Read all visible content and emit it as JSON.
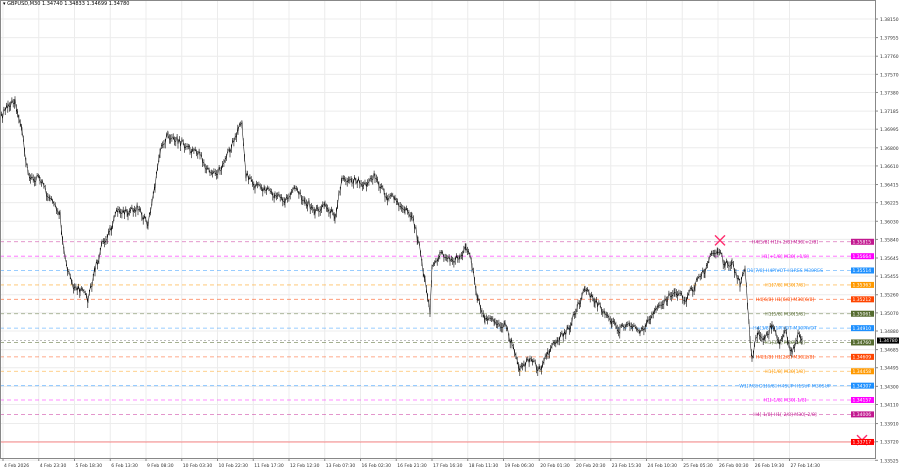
{
  "header": {
    "symbol_icon": "triangle-down-icon",
    "title": "GBPUSD,M30  1.34740 1.34833 1.34699 1.34780"
  },
  "chart_data": {
    "type": "line",
    "title": "GBPUSD,M30",
    "ylim": [
      1.33549,
      1.38349
    ],
    "xlim": [
      0,
      875
    ],
    "grid": true,
    "y_ticks": [
      "1.38150",
      "1.37955",
      "1.37760",
      "1.37570",
      "1.37380",
      "1.37185",
      "1.36995",
      "1.36800",
      "1.36610",
      "1.36415",
      "1.36225",
      "1.36030",
      "1.35840",
      "1.35645",
      "1.35455",
      "1.35260",
      "1.35070",
      "1.34880",
      "1.34685",
      "1.34495",
      "1.34300",
      "1.34110",
      "1.33910",
      "1.33720",
      "1.33525"
    ],
    "x_ticks": [
      "4 Feb 2026",
      "4 Feb 23:30",
      "5 Feb 18:30",
      "6 Feb 13:30",
      "9 Feb 08:30",
      "10 Feb 03:30",
      "10 Feb 22:30",
      "11 Feb 17:30",
      "12 Feb 12:30",
      "13 Feb 07:30",
      "16 Feb 02:30",
      "16 Feb 21:30",
      "17 Feb 16:30",
      "18 Feb 11:30",
      "19 Feb 06:30",
      "20 Feb 01:30",
      "20 Feb 20:30",
      "23 Feb 15:30",
      "24 Feb 10:30",
      "25 Feb 05:30",
      "26 Feb 00:30",
      "26 Feb 19:30",
      "27 Feb 14:30"
    ],
    "bars": [
      0,
      8,
      15,
      22,
      28,
      40,
      50,
      60,
      65,
      72,
      80,
      88,
      95,
      102,
      110,
      118,
      128,
      138,
      148,
      155,
      160,
      168,
      178,
      190,
      200,
      210,
      220,
      230,
      238,
      242,
      246,
      255,
      265,
      275,
      285,
      295,
      305,
      315,
      325,
      335,
      342,
      352,
      365,
      375,
      385,
      395,
      405,
      412,
      418,
      425,
      430,
      432,
      440,
      450,
      460,
      466,
      472,
      478,
      485,
      495,
      505,
      512,
      520,
      530,
      540,
      548,
      558,
      568,
      578,
      585,
      595,
      605,
      612,
      620,
      630,
      640,
      648,
      656,
      665,
      675,
      685,
      695,
      705,
      712,
      718,
      725,
      732,
      740,
      745,
      750,
      752,
      758,
      765,
      772,
      780,
      785,
      792,
      798,
      802
    ],
    "closes": [
      1.37091,
      1.37249,
      1.37301,
      1.36987,
      1.36515,
      1.36463,
      1.36253,
      1.36096,
      1.35624,
      1.35362,
      1.3531,
      1.35205,
      1.35519,
      1.35781,
      1.35939,
      1.36148,
      1.36127,
      1.36169,
      1.35991,
      1.36411,
      1.36777,
      1.36934,
      1.36882,
      1.36777,
      1.36725,
      1.36515,
      1.36567,
      1.36777,
      1.36987,
      1.37039,
      1.36515,
      1.36411,
      1.36358,
      1.36306,
      1.36253,
      1.36358,
      1.36253,
      1.36148,
      1.36201,
      1.36096,
      1.36463,
      1.36463,
      1.36411,
      1.36515,
      1.36306,
      1.36253,
      1.36148,
      1.36096,
      1.35834,
      1.35415,
      1.351,
      1.35519,
      1.35677,
      1.35624,
      1.35645,
      1.35781,
      1.35572,
      1.35205,
      1.35016,
      1.34974,
      1.34943,
      1.34733,
      1.34492,
      1.34576,
      1.34472,
      1.3466,
      1.34786,
      1.34891,
      1.35153,
      1.3531,
      1.35205,
      1.35047,
      1.34995,
      1.34891,
      1.34943,
      1.34838,
      1.34995,
      1.351,
      1.35205,
      1.3531,
      1.35205,
      1.35362,
      1.35519,
      1.35677,
      1.35729,
      1.35572,
      1.35603,
      1.35362,
      1.35519,
      1.34786,
      1.34576,
      1.34891,
      1.34786,
      1.34943,
      1.34733,
      1.34891,
      1.34629,
      1.34838,
      1.34807
    ],
    "series_color": "#000000",
    "current_price": {
      "label": "1.34780",
      "value": 1.3478,
      "color": "#000000"
    },
    "levels": [
      {
        "value": 1.35815,
        "label": "H4[5/8] H1[+2/8] M30[+2/8]",
        "tag": "1.35815",
        "color": "#c2188f"
      },
      {
        "value": 1.35664,
        "label": "H1[+1/8] M30[+1/8]",
        "tag": "1.35664",
        "color": "#ff00ff"
      },
      {
        "value": 1.35514,
        "label": "D1[7/8] H4PIVOT H1RES M30RES",
        "tag": "1.35514",
        "color": "#1e90ff"
      },
      {
        "value": 1.35363,
        "label": "H1[7/8] M30[7/8]",
        "tag": "1.35363",
        "color": "#ff9900"
      },
      {
        "value": 1.35212,
        "label": "H4[6/8] H1[6/8] M30[6/8]",
        "tag": "1.35212",
        "color": "#ff4500"
      },
      {
        "value": 1.35061,
        "label": "H1[5/8] M30[5/8]",
        "tag": "1.35061",
        "color": "#556b2f"
      },
      {
        "value": 1.3491,
        "label": "H4[3/8] H1PIVOT M30PIVOT",
        "tag": "1.34910",
        "color": "#1e90ff"
      },
      {
        "value": 1.3476,
        "label": "H1[3/8] M30[3/8]",
        "tag": "1.34760",
        "color": "#556b2f"
      },
      {
        "value": 1.34609,
        "label": "H4[1/8] H1[2/8] M30[2/8]",
        "tag": "1.34609",
        "color": "#ff4500"
      },
      {
        "value": 1.34458,
        "label": "H1[1/8] M30[1/8]",
        "tag": "1.34458",
        "color": "#ff9900"
      },
      {
        "value": 1.34307,
        "label": "W1[7/8] D1[6/8] H4SUP H1SUP M30SUP",
        "tag": "1.34307",
        "color": "#1e90ff"
      },
      {
        "value": 1.34157,
        "label": "H1[-1/8] M30[-1/8]",
        "tag": "1.34157",
        "color": "#ff00ff"
      },
      {
        "value": 1.34006,
        "label": "H4[-1/8] H1[-2/8] M30[-2/8]",
        "tag": "1.34006",
        "color": "#c2188f"
      },
      {
        "value": 1.33717,
        "label": "",
        "tag": "1.33717",
        "color": "#ff0000",
        "solid": true
      }
    ],
    "markers": [
      {
        "type": "cross",
        "bar": 720,
        "value": 1.3583,
        "color": "#ff2d6e"
      },
      {
        "type": "cross",
        "bar": 862,
        "value": 1.33736,
        "color": "#ff2d6e"
      }
    ]
  }
}
